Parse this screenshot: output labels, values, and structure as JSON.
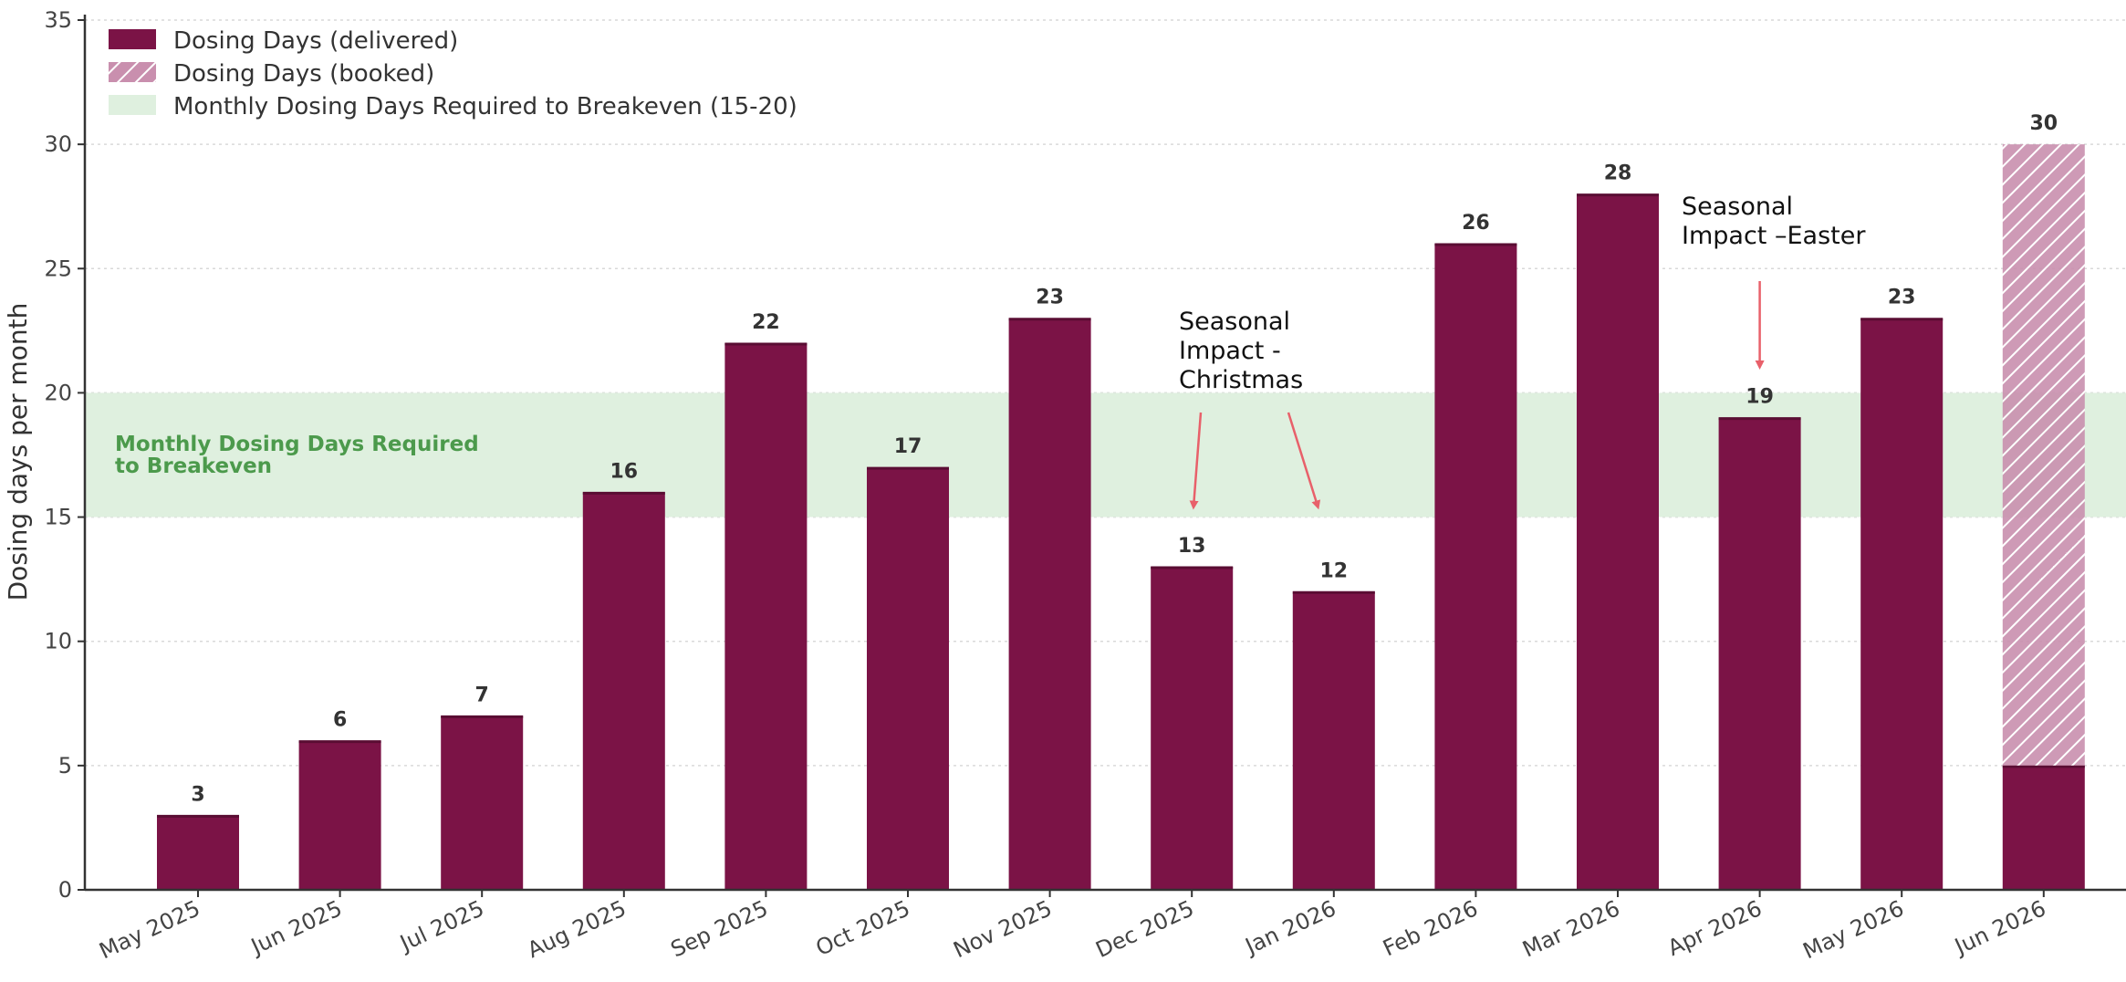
{
  "chart_data": {
    "type": "bar",
    "categories": [
      "May 2025",
      "Jun 2025",
      "Jul 2025",
      "Aug 2025",
      "Sep 2025",
      "Oct 2025",
      "Nov 2025",
      "Dec 2025",
      "Jan 2026",
      "Feb 2026",
      "Mar 2026",
      "Apr 2026",
      "May 2026",
      "Jun 2026"
    ],
    "series": [
      {
        "name": "Dosing Days (delivered)",
        "values": [
          3,
          6,
          7,
          16,
          22,
          17,
          23,
          13,
          12,
          26,
          28,
          19,
          23,
          5
        ]
      },
      {
        "name": "Dosing Days (booked)",
        "values": [
          0,
          0,
          0,
          0,
          0,
          0,
          0,
          0,
          0,
          0,
          0,
          0,
          0,
          25
        ]
      }
    ],
    "bar_labels": [
      "3",
      "6",
      "7",
      "16",
      "22",
      "17",
      "23",
      "13",
      "12",
      "26",
      "28",
      "19",
      "23",
      "30"
    ],
    "band": {
      "name": "Monthly Dosing Days Required to Breakeven (15-20)",
      "min": 15,
      "max": 20,
      "label": "Monthly Dosing Days Required to Breakeven"
    },
    "ylabel": "Dosing days per month",
    "xlabel": "",
    "ylim": [
      0,
      35
    ],
    "yticks": [
      0,
      5,
      10,
      15,
      20,
      25,
      30,
      35
    ],
    "grid": true,
    "legend_position": "top-left",
    "annotations": [
      {
        "text_lines": [
          "Seasonal",
          "Impact -",
          "Christmas"
        ],
        "targets": [
          "Dec 2025",
          "Jan 2026"
        ]
      },
      {
        "text_lines": [
          "Seasonal",
          "Impact –Easter"
        ],
        "targets": [
          "Apr 2026"
        ]
      }
    ],
    "colors": {
      "delivered": "#7b1346",
      "booked_fill": "#c98fae",
      "band": "#dff0df",
      "band_text": "#4c9a4c",
      "arrow": "#e8606a"
    }
  }
}
